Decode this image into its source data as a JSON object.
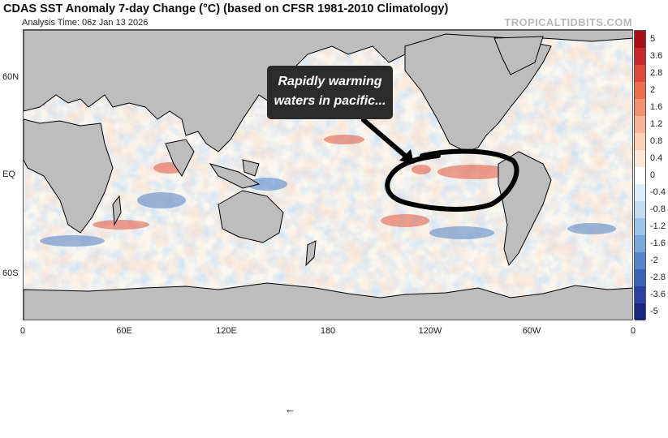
{
  "title": "CDAS SST Anomaly 7-day Change (°C) (based on CFSR 1981-2010 Climatology)",
  "subtitle": "Analysis Time: 06z Jan 13 2026",
  "watermark": "TROPICALTIDBITS.COM",
  "lat_labels": [
    "60N",
    "EQ",
    "60S"
  ],
  "lon_labels": [
    "0",
    "60E",
    "120E",
    "180",
    "120W",
    "60W",
    "0"
  ],
  "colorbar": {
    "labels": [
      "5",
      "3.6",
      "2.8",
      "2",
      "1.6",
      "1.2",
      "0.8",
      "0.4",
      "0",
      "-0.4",
      "-0.8",
      "-1.2",
      "-1.6",
      "-2",
      "-2.8",
      "-3.6",
      "-5"
    ],
    "colors": [
      "#a50f15",
      "#c8282c",
      "#de4a3b",
      "#ea6e4f",
      "#f29272",
      "#f7b397",
      "#fbd1b8",
      "#fde8d8",
      "#ffffff",
      "#ddeefa",
      "#c2dcf2",
      "#9dc4e8",
      "#7aa7da",
      "#5686c9",
      "#3a63b5",
      "#2841a3",
      "#1a237e"
    ]
  },
  "colors": {
    "land": "#bdbdbd",
    "annotation_bg": "#2b2b2b"
  },
  "annotation": {
    "line1": "Rapidly warming",
    "line2": "waters in pacific..."
  },
  "small_arrow": "←"
}
